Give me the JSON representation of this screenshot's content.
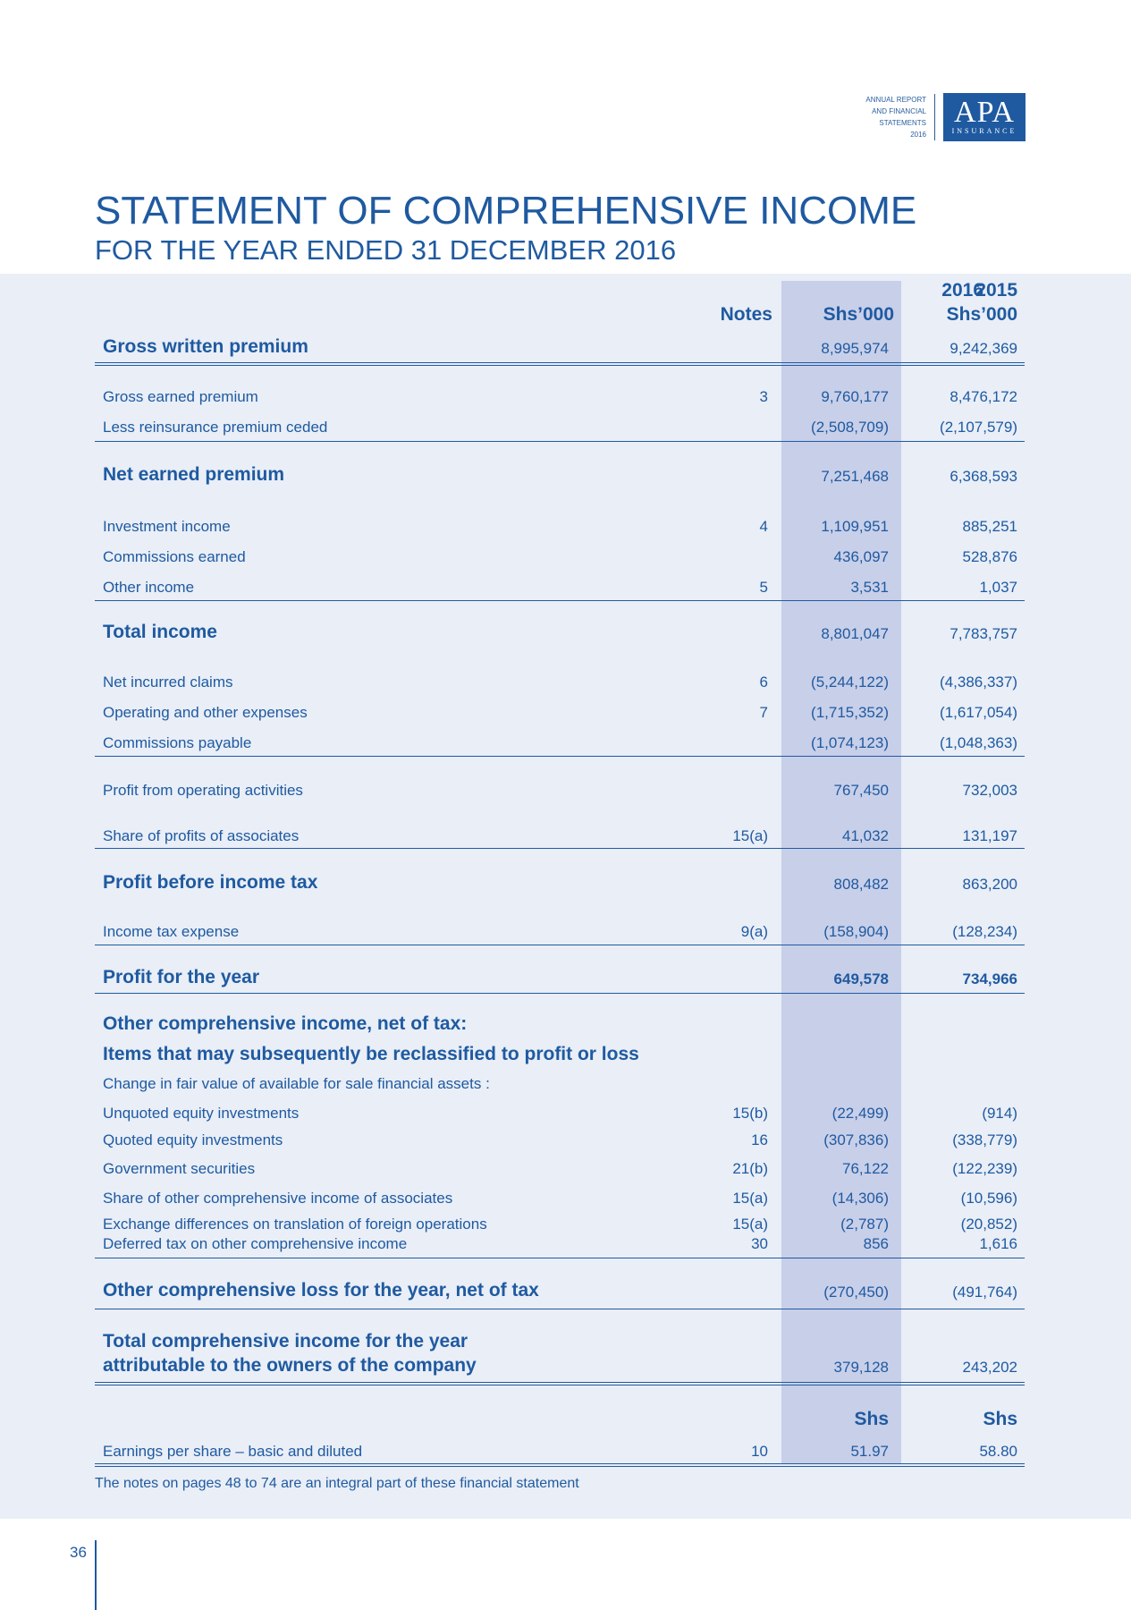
{
  "brand": {
    "lines": [
      "ANNUAL REPORT",
      "AND FINANCIAL",
      "STATEMENTS",
      "2016"
    ],
    "logo_main": "APA",
    "logo_sub": "INSURANCE"
  },
  "title": "STATEMENT OF COMPREHENSIVE INCOME",
  "subtitle": "FOR THE YEAR ENDED 31 DECEMBER 2016",
  "header": {
    "notes": "Notes",
    "y2016": "2016",
    "y2015": "2015",
    "unit2016": "Shs’000",
    "unit2015": "Shs’000"
  },
  "rows": [
    {
      "label": "Gross written premium",
      "note": "",
      "v2016": "8,995,974",
      "v2015": "9,242,369"
    },
    {
      "label": "Gross earned premium",
      "note": "3",
      "v2016": "9,760,177",
      "v2015": "8,476,172"
    },
    {
      "label": "Less reinsurance premium ceded",
      "note": "",
      "v2016": "(2,508,709)",
      "v2015": "(2,107,579)"
    },
    {
      "label": "Net earned premium",
      "note": "",
      "v2016": "7,251,468",
      "v2015": "6,368,593"
    },
    {
      "label": "Investment income",
      "note": "4",
      "v2016": "1,109,951",
      "v2015": "885,251"
    },
    {
      "label": "Commissions earned",
      "note": "",
      "v2016": "436,097",
      "v2015": "528,876"
    },
    {
      "label": "Other income",
      "note": "5",
      "v2016": "3,531",
      "v2015": "1,037"
    },
    {
      "label": "Total income",
      "note": "",
      "v2016": "8,801,047",
      "v2015": "7,783,757"
    },
    {
      "label": "Net incurred claims",
      "note": "6",
      "v2016": "(5,244,122)",
      "v2015": "(4,386,337)"
    },
    {
      "label": "Operating and other expenses",
      "note": "7",
      "v2016": "(1,715,352)",
      "v2015": "(1,617,054)"
    },
    {
      "label": "Commissions payable",
      "note": "",
      "v2016": "(1,074,123)",
      "v2015": "(1,048,363)"
    },
    {
      "label": "Profit from operating activities",
      "note": "",
      "v2016": "767,450",
      "v2015": "732,003"
    },
    {
      "label": "Share of profits of associates",
      "note": "15(a)",
      "v2016": "41,032",
      "v2015": "131,197"
    },
    {
      "label": "Profit before income tax",
      "note": "",
      "v2016": "808,482",
      "v2015": "863,200"
    },
    {
      "label": "Income tax expense",
      "note": "9(a)",
      "v2016": "(158,904)",
      "v2015": "(128,234)"
    },
    {
      "label": "Profit for the year",
      "note": "",
      "v2016": "649,578",
      "v2015": "734,966"
    },
    {
      "label": "Other comprehensive income, net of tax:",
      "note": "",
      "v2016": "",
      "v2015": ""
    },
    {
      "label": "Items that may subsequently be reclassified to profit or loss",
      "note": "",
      "v2016": "",
      "v2015": ""
    },
    {
      "label": "Change in fair value of available for sale financial assets :",
      "note": "",
      "v2016": "",
      "v2015": ""
    },
    {
      "label": "Unquoted equity investments",
      "note": "15(b)",
      "v2016": "(22,499)",
      "v2015": "(914)"
    },
    {
      "label": "Quoted equity investments",
      "note": "16",
      "v2016": "(307,836)",
      "v2015": "(338,779)"
    },
    {
      "label": "Government securities",
      "note": "21(b)",
      "v2016": "76,122",
      "v2015": "(122,239)"
    },
    {
      "label": "Share of other comprehensive income of associates",
      "note": "15(a)",
      "v2016": "(14,306)",
      "v2015": "(10,596)"
    },
    {
      "label": "Exchange differences on translation of foreign operations",
      "note": "15(a)",
      "v2016": "(2,787)",
      "v2015": "(20,852)"
    },
    {
      "label": "Deferred tax on other comprehensive income",
      "note": "30",
      "v2016": "856",
      "v2015": "1,616"
    },
    {
      "label": "Other comprehensive loss for the year, net of tax",
      "note": "",
      "v2016": "(270,450)",
      "v2015": "(491,764)"
    },
    {
      "label": "Total comprehensive income for the year",
      "note": "",
      "v2016": "",
      "v2015": ""
    },
    {
      "label": "attributable to the owners of the company",
      "note": "",
      "v2016": "379,128",
      "v2015": "243,202"
    },
    {
      "label": "",
      "note": "",
      "v2016": "Shs",
      "v2015": "Shs"
    },
    {
      "label": "Earnings per share – basic and diluted",
      "note": "10",
      "v2016": "51.97",
      "v2015": "58.80"
    }
  ],
  "footnote": "The notes on pages 48 to 74 are an integral part of these financial statement",
  "page_number": "36"
}
